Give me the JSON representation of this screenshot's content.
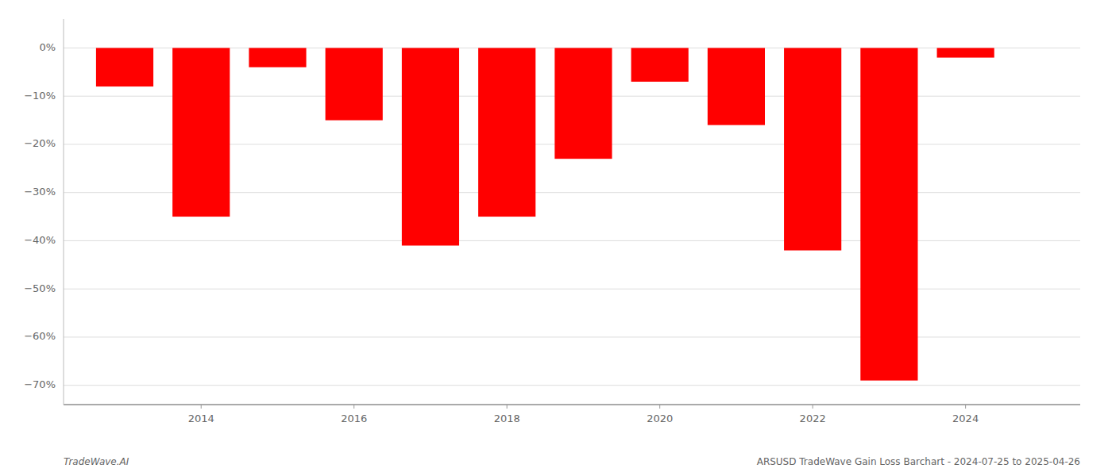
{
  "chart_data": {
    "type": "bar",
    "x": [
      2013,
      2014,
      2015,
      2016,
      2017,
      2018,
      2019,
      2020,
      2021,
      2022,
      2023,
      2024
    ],
    "values": [
      -0.08,
      -0.35,
      -0.04,
      -0.15,
      -0.41,
      -0.35,
      -0.23,
      -0.07,
      -0.16,
      -0.42,
      -0.69,
      -0.02
    ],
    "color": "#ff0000",
    "xlim": [
      2012.2,
      2025.5
    ],
    "xticks": [
      2014,
      2016,
      2018,
      2020,
      2022,
      2024
    ],
    "ylim": [
      -0.74,
      0.06
    ],
    "yticks": [
      {
        "value": 0,
        "label": "0%"
      },
      {
        "value": -0.1,
        "label": "−10%"
      },
      {
        "value": -0.2,
        "label": "−20%"
      },
      {
        "value": -0.3,
        "label": "−30%"
      },
      {
        "value": -0.4,
        "label": "−40%"
      },
      {
        "value": -0.5,
        "label": "−50%"
      },
      {
        "value": -0.6,
        "label": "−60%"
      },
      {
        "value": -0.7,
        "label": "−70%"
      }
    ],
    "grid": true,
    "annotations": [
      "TradeWave.AI",
      "ARSUSD TradeWave Gain Loss Barchart - 2024-07-25 to 2025-04-26"
    ]
  }
}
